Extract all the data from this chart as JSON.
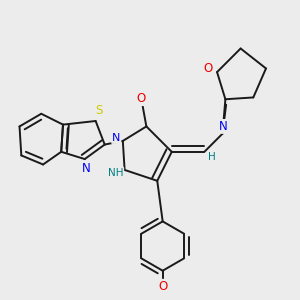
{
  "bg_color": "#ececec",
  "bond_color": "#1a1a1a",
  "atom_colors": {
    "N": "#0000ee",
    "O": "#ee0000",
    "S": "#cccc00",
    "NH": "#008080",
    "H": "#008080",
    "C": "#1a1a1a"
  },
  "lw": 1.4
}
